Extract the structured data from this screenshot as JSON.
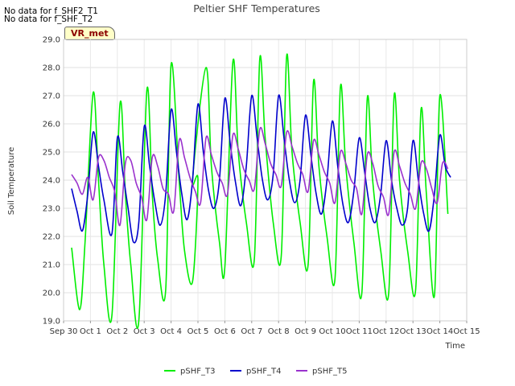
{
  "notes": [
    "No data for f_SHF2_T1",
    "No data for f_SHF_T2"
  ],
  "badge": "VR_met",
  "chart_data": {
    "type": "line",
    "title": "Peltier SHF Temperatures",
    "xlabel": "Time",
    "ylabel": "Soil Temperature",
    "ylim": [
      19.0,
      29.0
    ],
    "yticks": [
      "19.0",
      "20.0",
      "21.0",
      "22.0",
      "23.0",
      "24.0",
      "25.0",
      "26.0",
      "27.0",
      "28.0",
      "29.0"
    ],
    "xlim_days": [
      0,
      15
    ],
    "xticks": [
      "Sep 30",
      "Oct 1",
      "Oct 2",
      "Oct 3",
      "Oct 4",
      "Oct 5",
      "Oct 6",
      "Oct 7",
      "Oct 8",
      "Oct 9",
      "Oct 10",
      "Oct 11",
      "Oct 12",
      "Oct 13",
      "Oct 14",
      "Oct 15"
    ],
    "grid": true,
    "legend_position": "bottom",
    "series": [
      {
        "name": "pSHF_T3",
        "color": "#00ee00",
        "x": [
          0.3,
          0.6,
          0.8,
          1.1,
          1.3,
          1.5,
          1.8,
          2.1,
          2.3,
          2.5,
          2.8,
          3.1,
          3.3,
          3.5,
          3.8,
          4.0,
          4.3,
          4.5,
          4.8,
          5.0,
          4.8,
          5.3,
          5.5,
          5.8,
          6.0,
          6.3,
          6.5,
          6.8,
          7.1,
          7.3,
          7.5,
          7.8,
          8.1,
          8.3,
          8.5,
          8.8,
          9.1,
          9.3,
          9.5,
          9.8,
          10.1,
          10.3,
          10.5,
          10.8,
          11.1,
          11.3,
          11.5,
          11.8,
          12.1,
          12.3,
          12.5,
          12.8,
          13.1,
          13.3,
          13.5,
          13.8,
          14.0,
          14.3
        ],
        "y": [
          21.6,
          19.4,
          21.8,
          27.1,
          24.0,
          21.0,
          19.2,
          26.7,
          23.5,
          21.0,
          19.0,
          27.2,
          23.5,
          21.2,
          20.1,
          28.1,
          24.0,
          21.5,
          20.4,
          24.0,
          24.0,
          28.0,
          24.5,
          21.8,
          20.9,
          28.2,
          25.0,
          22.5,
          21.2,
          28.3,
          25.5,
          22.5,
          21.3,
          28.4,
          25.0,
          22.5,
          21.0,
          27.5,
          24.5,
          22.0,
          20.5,
          27.3,
          24.5,
          21.8,
          20.0,
          26.9,
          24.0,
          21.5,
          20.0,
          27.0,
          24.0,
          21.5,
          20.1,
          26.5,
          23.5,
          19.9,
          27.0,
          22.8
        ]
      },
      {
        "name": "pSHF_T4",
        "color": "#0000cc",
        "x": [
          0.3,
          0.5,
          0.7,
          0.9,
          1.1,
          1.3,
          1.5,
          1.8,
          2.0,
          2.2,
          2.4,
          2.6,
          2.8,
          3.0,
          3.2,
          3.4,
          3.6,
          3.8,
          4.0,
          4.2,
          4.4,
          4.6,
          4.8,
          5.0,
          5.2,
          5.4,
          5.6,
          5.8,
          6.0,
          6.2,
          6.4,
          6.6,
          6.8,
          7.0,
          7.2,
          7.4,
          7.6,
          7.8,
          8.0,
          8.2,
          8.4,
          8.6,
          8.8,
          9.0,
          9.2,
          9.4,
          9.6,
          9.8,
          10.0,
          10.2,
          10.4,
          10.6,
          10.8,
          11.0,
          11.2,
          11.4,
          11.6,
          11.8,
          12.0,
          12.2,
          12.4,
          12.6,
          12.8,
          13.0,
          13.2,
          13.4,
          13.6,
          13.8,
          14.0,
          14.2,
          14.4
        ],
        "y": [
          23.7,
          22.9,
          22.2,
          23.5,
          25.7,
          24.5,
          23.3,
          22.1,
          25.5,
          24.3,
          23.0,
          21.8,
          22.5,
          25.9,
          24.5,
          23.2,
          22.4,
          23.5,
          26.5,
          25.0,
          23.5,
          22.6,
          24.0,
          26.7,
          25.0,
          23.6,
          23.0,
          24.0,
          26.9,
          25.3,
          23.9,
          23.1,
          24.5,
          27.0,
          25.5,
          24.0,
          23.3,
          24.2,
          27.0,
          25.5,
          24.0,
          23.2,
          24.0,
          26.3,
          24.9,
          23.5,
          22.8,
          24.0,
          26.1,
          24.5,
          23.1,
          22.5,
          23.6,
          25.5,
          24.3,
          23.0,
          22.5,
          23.5,
          25.4,
          24.0,
          23.0,
          22.4,
          23.0,
          25.4,
          24.0,
          22.8,
          22.2,
          23.5,
          25.6,
          24.5,
          24.1
        ]
      },
      {
        "name": "pSHF_T5",
        "color": "#9a32cd",
        "x": [
          0.3,
          0.5,
          0.7,
          0.9,
          1.1,
          1.3,
          1.5,
          1.7,
          1.9,
          2.1,
          2.3,
          2.5,
          2.7,
          2.9,
          3.1,
          3.3,
          3.5,
          3.7,
          3.9,
          4.1,
          4.3,
          4.5,
          4.7,
          4.9,
          5.1,
          5.3,
          5.5,
          5.7,
          5.9,
          6.1,
          6.3,
          6.5,
          6.7,
          6.9,
          7.1,
          7.3,
          7.5,
          7.7,
          7.9,
          8.1,
          8.3,
          8.5,
          8.7,
          8.9,
          9.1,
          9.3,
          9.5,
          9.7,
          9.9,
          10.1,
          10.3,
          10.5,
          10.7,
          10.9,
          11.1,
          11.3,
          11.5,
          11.7,
          11.9,
          12.1,
          12.3,
          12.5,
          12.7,
          12.9,
          13.1,
          13.3,
          13.5,
          13.7,
          13.9,
          14.1,
          14.3
        ],
        "y": [
          24.2,
          23.9,
          23.5,
          24.1,
          23.3,
          24.8,
          24.7,
          24.1,
          23.6,
          22.4,
          24.6,
          24.7,
          23.9,
          23.4,
          22.6,
          24.8,
          24.5,
          23.7,
          23.5,
          22.9,
          25.4,
          24.8,
          24.1,
          23.6,
          23.2,
          25.5,
          24.9,
          24.3,
          23.9,
          23.5,
          25.6,
          25.1,
          24.4,
          24.0,
          23.7,
          25.8,
          25.3,
          24.6,
          24.2,
          23.8,
          25.7,
          25.2,
          24.6,
          24.2,
          23.6,
          25.4,
          24.9,
          24.3,
          23.9,
          23.2,
          25.0,
          24.6,
          24.0,
          23.7,
          22.8,
          24.9,
          24.6,
          23.8,
          23.4,
          22.8,
          25.0,
          24.5,
          23.9,
          23.5,
          23.0,
          24.6,
          24.4,
          23.7,
          23.2,
          24.6,
          24.4
        ]
      }
    ]
  }
}
